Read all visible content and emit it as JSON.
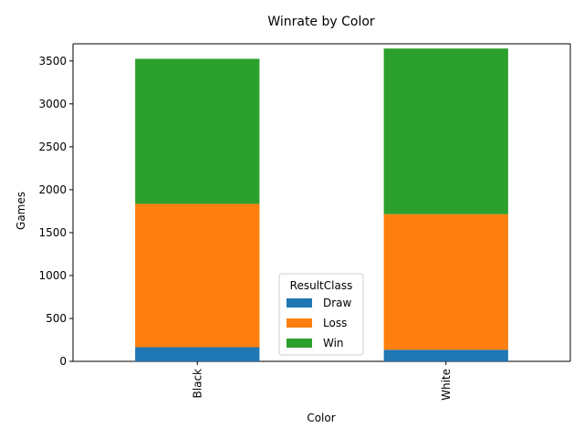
{
  "chart_data": {
    "type": "bar",
    "stacked": true,
    "title": "Winrate by Color",
    "xlabel": "Color",
    "ylabel": "Games",
    "categories": [
      "Black",
      "White"
    ],
    "series": [
      {
        "name": "Draw",
        "color": "#1f77b4",
        "values": [
          165,
          135
        ]
      },
      {
        "name": "Loss",
        "color": "#ff7f0e",
        "values": [
          1670,
          1580
        ]
      },
      {
        "name": "Win",
        "color": "#2ca02c",
        "values": [
          1690,
          1930
        ]
      }
    ],
    "ylim": [
      0,
      3700
    ],
    "yticks": [
      0,
      500,
      1000,
      1500,
      2000,
      2500,
      3000,
      3500
    ],
    "grid": false,
    "legend": {
      "title": "ResultClass",
      "placement": "lower-center"
    }
  }
}
